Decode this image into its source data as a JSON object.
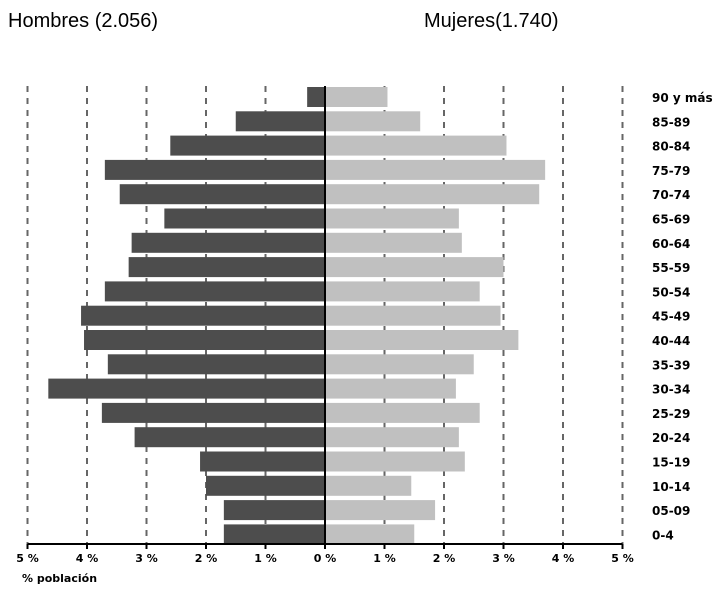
{
  "titles": {
    "left": "Hombres (2.056)",
    "right": "Mujeres(1.740)"
  },
  "chart_data": {
    "type": "bar",
    "orientation": "horizontal",
    "subtype": "population pyramid",
    "categories": [
      "90 y más",
      "85-89",
      "80-84",
      "75-79",
      "70-74",
      "65-69",
      "60-64",
      "55-59",
      "50-54",
      "45-49",
      "40-44",
      "35-39",
      "30-34",
      "25-29",
      "20-24",
      "15-19",
      "10-14",
      "05-09",
      "0-4"
    ],
    "series": [
      {
        "name": "Hombres (2.056)",
        "side": "left",
        "color": "#4d4d4d",
        "values": [
          0.3,
          1.5,
          2.6,
          3.7,
          3.45,
          2.7,
          3.25,
          3.3,
          3.7,
          4.1,
          4.05,
          3.65,
          4.65,
          3.75,
          3.2,
          2.1,
          2.0,
          1.7,
          1.7
        ]
      },
      {
        "name": "Mujeres(1.740)",
        "side": "right",
        "color": "#c0c0c0",
        "values": [
          1.05,
          1.6,
          3.05,
          3.7,
          3.6,
          2.25,
          2.3,
          3.0,
          2.6,
          2.95,
          3.25,
          2.5,
          2.2,
          2.6,
          2.25,
          2.35,
          1.45,
          1.85,
          1.5
        ]
      }
    ],
    "xlim": [
      -5,
      5
    ],
    "xticks": [
      5,
      4,
      3,
      2,
      1,
      0,
      1,
      2,
      3,
      4,
      5
    ],
    "tick_suffix": "%",
    "xlabel": "% población",
    "grid": "vertical dashed",
    "legend": "none"
  }
}
